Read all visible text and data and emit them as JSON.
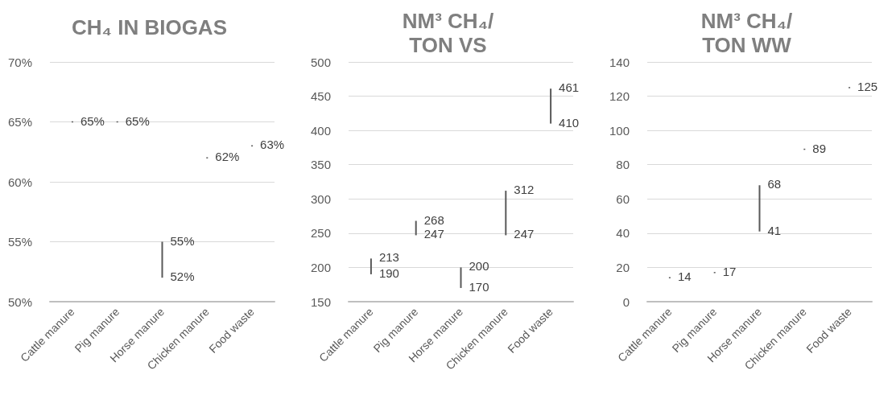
{
  "chart_data": [
    {
      "type": "bar",
      "title": "CH₄ IN BIOGAS",
      "categories": [
        "Cattle manure",
        "Pig manure",
        "Horse manure",
        "Chicken manure",
        "Food waste"
      ],
      "base": [
        65,
        65,
        52,
        62,
        63
      ],
      "values": [
        0,
        0,
        3,
        0,
        0
      ],
      "color": "#595959",
      "ylim": [
        50,
        70
      ],
      "yticks": [
        {
          "value": 50,
          "label": "50%"
        },
        {
          "value": 55,
          "label": "55%"
        },
        {
          "value": 60,
          "label": "60%"
        },
        {
          "value": 65,
          "label": "65%"
        },
        {
          "value": 70,
          "label": "70%"
        }
      ],
      "grid": "y",
      "annotations": [
        {
          "text": "65%",
          "x": "Cattle manure",
          "y": 65
        },
        {
          "text": "65%",
          "x": "Pig manure",
          "y": 65
        },
        {
          "text": "55%",
          "x": "Horse manure",
          "y": 55
        },
        {
          "text": "52%",
          "x": "Horse manure",
          "y": 52
        },
        {
          "text": "62%",
          "x": "Chicken manure",
          "y": 62
        },
        {
          "text": "63%",
          "x": "Food waste",
          "y": 63
        }
      ]
    },
    {
      "type": "bar",
      "title": "NM³ CH₄/\nTON VS",
      "categories": [
        "Cattle manure",
        "Pig manure",
        "Horse manure",
        "Chicken manure",
        "Food waste"
      ],
      "base": [
        190,
        247,
        170,
        247,
        410
      ],
      "values": [
        23,
        21,
        30,
        65,
        51
      ],
      "color": "#595959",
      "ylim": [
        150,
        500
      ],
      "yticks": [
        150,
        200,
        250,
        300,
        350,
        400,
        450,
        500
      ],
      "grid": "y",
      "annotations": [
        {
          "text": "213",
          "x": "Cattle manure",
          "y": 213
        },
        {
          "text": "190",
          "x": "Cattle manure",
          "y": 190
        },
        {
          "text": "268",
          "x": "Pig manure",
          "y": 268
        },
        {
          "text": "247",
          "x": "Pig manure",
          "y": 247
        },
        {
          "text": "200",
          "x": "Horse manure",
          "y": 200
        },
        {
          "text": "170",
          "x": "Horse manure",
          "y": 170
        },
        {
          "text": "312",
          "x": "Chicken manure",
          "y": 312
        },
        {
          "text": "247",
          "x": "Chicken manure",
          "y": 247
        },
        {
          "text": "461",
          "x": "Food waste",
          "y": 461
        },
        {
          "text": "410",
          "x": "Food waste",
          "y": 410
        }
      ]
    },
    {
      "type": "bar",
      "title": "NM³ CH₄/\nTON WW",
      "categories": [
        "Cattle manure",
        "Pig manure",
        "Horse manure",
        "Chicken manure",
        "Food waste"
      ],
      "base": [
        14,
        17,
        41,
        89,
        125
      ],
      "values": [
        0,
        0,
        27,
        0,
        0
      ],
      "color": "#595959",
      "ylim": [
        0,
        140
      ],
      "yticks": [
        0,
        20,
        40,
        60,
        80,
        100,
        120,
        140
      ],
      "grid": "y",
      "annotations": [
        {
          "text": "14",
          "x": "Cattle manure",
          "y": 14
        },
        {
          "text": "17",
          "x": "Pig manure",
          "y": 17
        },
        {
          "text": "68",
          "x": "Horse manure",
          "y": 68
        },
        {
          "text": "41",
          "x": "Horse manure",
          "y": 41
        },
        {
          "text": "89",
          "x": "Chicken manure",
          "y": 89
        },
        {
          "text": "125",
          "x": "Food waste",
          "y": 125
        }
      ]
    }
  ]
}
